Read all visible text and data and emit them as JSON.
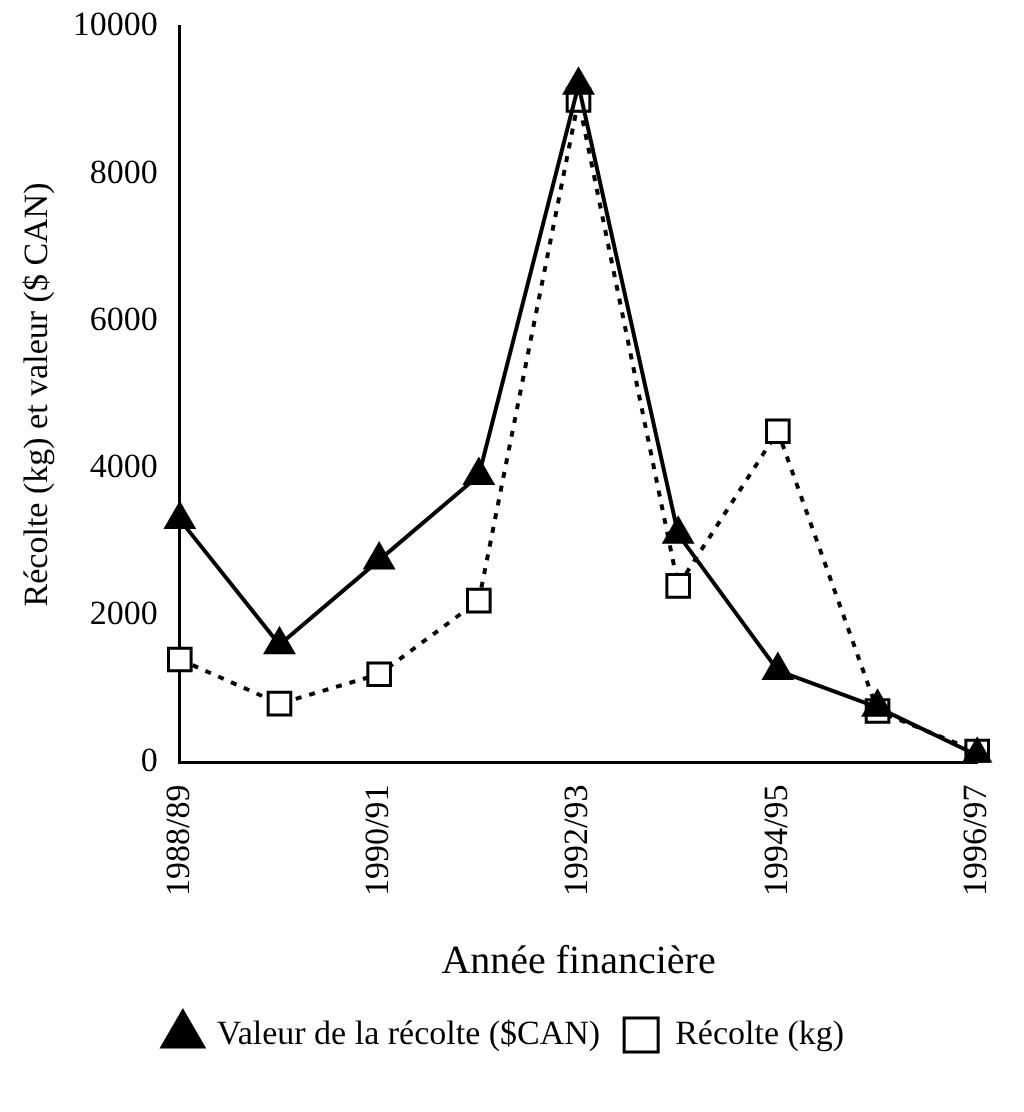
{
  "chart_data": {
    "type": "line",
    "xlabel": "Année financière",
    "ylabel": "Récolte (kg) et valeur ($ CAN)",
    "categories": [
      "1988/89",
      null,
      "1990/91",
      null,
      "1992/93",
      null,
      "1994/95",
      null,
      "1996/97"
    ],
    "series": [
      {
        "name": "Récolte (kg)",
        "color": "#000000",
        "marker": "square",
        "line_style": "dotted",
        "values": [
          1400,
          800,
          1200,
          2200,
          9000,
          2400,
          4500,
          700,
          150
        ]
      },
      {
        "name": "Valeur de la récolte ($CAN)",
        "color": "#000000",
        "marker": "triangle",
        "line_style": "solid",
        "values": [
          3300,
          1600,
          2750,
          3900,
          9200,
          3100,
          1250,
          750,
          100
        ]
      }
    ],
    "ylim": [
      0,
      10000
    ],
    "yticks": [
      0,
      2000,
      4000,
      6000,
      8000,
      10000
    ],
    "grid": false,
    "legend": "bottom"
  }
}
